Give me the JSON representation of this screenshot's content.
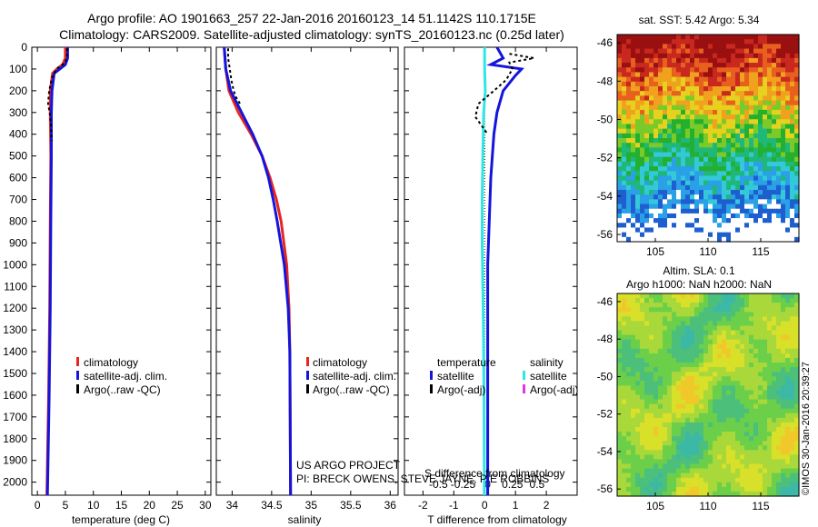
{
  "header": {
    "line1": "Argo profile: AO 1901663_257 22-Jan-2016 20160123_14 51.1142S 110.1715E",
    "line2": "Climatology: CARS2009. Satellite-adjusted climatology: synTS_20160123.nc (0.25d later)"
  },
  "colors": {
    "climatology": "#e8261e",
    "satellite": "#1414dc",
    "argo": "#000000",
    "salinity_satellite": "#2ee6e6",
    "salinity_argo": "#e633e6"
  },
  "panels": {
    "temperature": {
      "xlabel": "temperature (deg C)",
      "legend": [
        "climatology",
        "satellite-adj. clim.",
        "Argo(..raw -QC)"
      ]
    },
    "salinity": {
      "xlabel": "salinity",
      "legend": [
        "climatology",
        "satellite-adj. clim.",
        "Argo(..raw -QC)"
      ],
      "credit1": "US ARGO PROJECT",
      "credit2": "PI: BRECK OWENS, STEVE JAYNE, P E ROBBINS"
    },
    "difference": {
      "xlabel": "T difference from climatology",
      "top_label": "S difference from climatology",
      "legend_head_t": "temperature",
      "legend_head_s": "salinity",
      "legend_t": [
        "satellite",
        "Argo(-adj)"
      ],
      "legend_s": [
        "satellite",
        "Argo(-adj)"
      ]
    }
  },
  "maps": {
    "sst_title": "sat. SST: 5.42 Argo: 5.34",
    "sla_title1": "Altim. SLA: 0.1",
    "sla_title2": "Argo h1000: NaN h2000: NaN",
    "lon_ticks": [
      "105",
      "110",
      "115"
    ],
    "lat_ticks": [
      "-46",
      "-48",
      "-50",
      "-52",
      "-54",
      "-56"
    ],
    "watermark": "©IMOS 30-Jan-2016 20:39:27"
  },
  "chart_data": [
    {
      "type": "line",
      "panel": "temperature",
      "xlabel": "temperature (deg C)",
      "ylabel": "",
      "xlim": [
        -1,
        31
      ],
      "ylim": [
        2060,
        0
      ],
      "xticks": [
        0,
        5,
        10,
        15,
        20,
        25,
        30
      ],
      "yticks": [
        0,
        100,
        200,
        300,
        400,
        500,
        600,
        700,
        800,
        900,
        1000,
        1100,
        1200,
        1300,
        1400,
        1500,
        1600,
        1700,
        1800,
        1900,
        2000
      ],
      "series": [
        {
          "name": "climatology",
          "depth": [
            0,
            50,
            80,
            100,
            120,
            200,
            300,
            500,
            800,
            1200,
            1600,
            2060
          ],
          "values": [
            5.0,
            5.0,
            4.5,
            3.5,
            2.7,
            2.3,
            2.3,
            2.4,
            2.3,
            2.2,
            2.0,
            1.7
          ]
        },
        {
          "name": "satellite-adj. clim.",
          "depth": [
            0,
            50,
            80,
            100,
            120,
            200,
            300,
            500,
            800,
            1200,
            1600,
            2060
          ],
          "values": [
            5.4,
            5.4,
            5.0,
            4.0,
            3.0,
            2.6,
            2.5,
            2.5,
            2.4,
            2.3,
            2.1,
            1.8
          ]
        },
        {
          "name": "Argo(..raw -QC)",
          "depth": [
            5,
            40,
            70,
            100,
            140,
            200,
            260,
            300,
            350,
            400,
            430
          ],
          "values": [
            5.3,
            5.3,
            5.0,
            3.4,
            2.6,
            2.1,
            1.9,
            2.2,
            2.4,
            2.5,
            2.6
          ]
        }
      ]
    },
    {
      "type": "line",
      "panel": "salinity",
      "xlabel": "salinity",
      "ylabel": "",
      "xlim": [
        33.8,
        36.1
      ],
      "ylim": [
        2060,
        0
      ],
      "xticks": [
        34,
        34.5,
        35,
        35.5,
        36
      ],
      "series": [
        {
          "name": "climatology",
          "depth": [
            0,
            100,
            200,
            300,
            400,
            500,
            600,
            700,
            800,
            1000,
            1200,
            1400,
            2060
          ],
          "values": [
            33.9,
            33.92,
            33.96,
            34.08,
            34.24,
            34.38,
            34.48,
            34.56,
            34.62,
            34.69,
            34.72,
            34.73,
            34.74
          ]
        },
        {
          "name": "satellite-adj. clim.",
          "depth": [
            0,
            100,
            200,
            300,
            400,
            500,
            600,
            700,
            800,
            1000,
            1200,
            1400,
            2060
          ],
          "values": [
            33.9,
            33.92,
            33.98,
            34.12,
            34.26,
            34.38,
            34.46,
            34.52,
            34.57,
            34.66,
            34.71,
            34.73,
            34.74
          ]
        },
        {
          "name": "Argo(..raw -QC)",
          "depth": [
            5,
            50,
            100,
            150,
            200,
            230,
            260
          ],
          "values": [
            33.95,
            33.95,
            33.97,
            33.99,
            34.02,
            34.05,
            34.1
          ]
        }
      ]
    },
    {
      "type": "line",
      "panel": "difference",
      "xlabel": "T difference from climatology",
      "ylabel": "",
      "xlim": [
        -2.6,
        3.0
      ],
      "ylim": [
        2060,
        0
      ],
      "xticks": [
        -2,
        -1,
        0,
        1,
        2
      ],
      "top_xticks": [
        "-0.5",
        "-0.25",
        "0",
        "0.25",
        "0.5"
      ],
      "series": [
        {
          "name": "temperature satellite",
          "depth": [
            0,
            50,
            80,
            100,
            130,
            200,
            300,
            400,
            600,
            1000,
            1500,
            2060
          ],
          "values": [
            0.4,
            0.6,
            0.2,
            1.2,
            1.0,
            0.6,
            0.4,
            0.3,
            0.2,
            0.1,
            0.1,
            0.1
          ]
        },
        {
          "name": "salinity satellite",
          "depth": [
            0,
            50,
            100,
            200,
            300,
            500,
            700,
            900,
            1100,
            1300,
            1600,
            2060
          ],
          "values": [
            0.0,
            0.0,
            0.0,
            0.02,
            -0.03,
            -0.06,
            -0.08,
            -0.08,
            -0.06,
            -0.04,
            -0.02,
            -0.01
          ]
        },
        {
          "name": "temperature Argo(-adj)",
          "depth": [
            30,
            50,
            70,
            100,
            150,
            200,
            260,
            320,
            400
          ],
          "values": [
            0.8,
            1.6,
            0.8,
            0.9,
            0.7,
            0.3,
            -0.2,
            -0.3,
            0.1
          ]
        }
      ]
    }
  ]
}
